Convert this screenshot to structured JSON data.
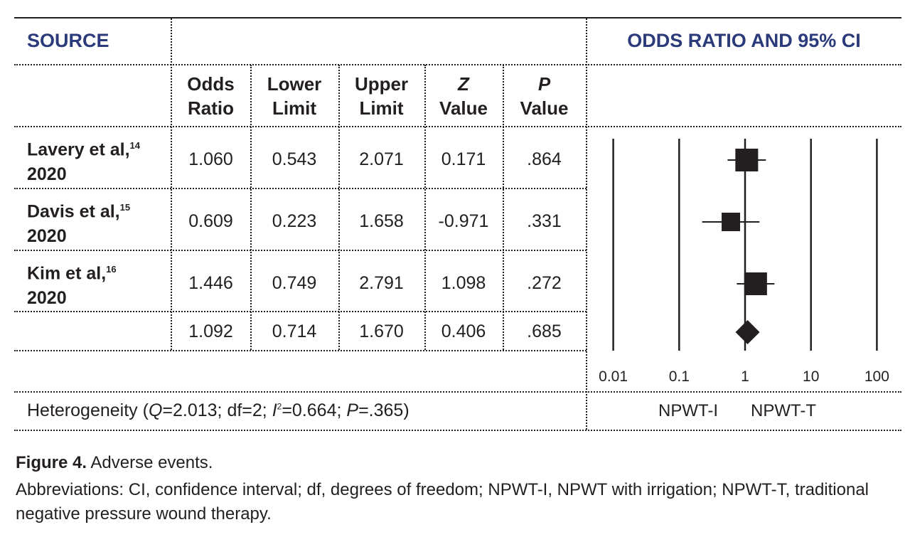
{
  "header": {
    "source": "SOURCE",
    "plot_title": "ODDS RATIO AND 95% CI"
  },
  "columns": [
    {
      "line1": "Odds",
      "line2": "Ratio"
    },
    {
      "line1": "Lower",
      "line2": "Limit"
    },
    {
      "line1": "Upper",
      "line2": "Limit"
    },
    {
      "line1": "Z",
      "line2": "Value"
    },
    {
      "line1": "P",
      "line2": "Value"
    }
  ],
  "chart_data": {
    "type": "forest",
    "x_scale": "log",
    "xlim": [
      0.01,
      100
    ],
    "x_ticks": [
      "0.01",
      "0.1",
      "1",
      "10",
      "100"
    ],
    "x_tick_values": [
      0.01,
      0.1,
      1,
      10,
      100
    ],
    "reference_line": 1,
    "favours_left": "NPWT-I",
    "favours_right": "NPWT-T",
    "rows": [
      {
        "name": "Lavery et al,",
        "ref": "14",
        "year": "2020",
        "or": "1.060",
        "lower": "0.543",
        "upper": "2.071",
        "z": "0.171",
        "p": ".864",
        "marker": "square"
      },
      {
        "name": "Davis et al,",
        "ref": "15",
        "year": "2020",
        "or": "0.609",
        "lower": "0.223",
        "upper": "1.658",
        "z": "-0.971",
        "p": ".331",
        "marker": "square"
      },
      {
        "name": "Kim et al,",
        "ref": "16",
        "year": "2020",
        "or": "1.446",
        "lower": "0.749",
        "upper": "2.791",
        "z": "1.098",
        "p": ".272",
        "marker": "square"
      },
      {
        "name": "",
        "ref": "",
        "year": "",
        "or": "1.092",
        "lower": "0.714",
        "upper": "1.670",
        "z": "0.406",
        "p": ".685",
        "marker": "diamond"
      }
    ]
  },
  "heterogeneity": {
    "prefix": "Heterogeneity (",
    "q": "Q",
    "q_val": "=2.013; df=2; ",
    "i": "I",
    "i_sup": "2",
    "i_val": "=0.664; ",
    "p": "P",
    "p_val": "=.365)"
  },
  "caption": {
    "label": "Figure 4.",
    "title": " Adverse events.",
    "abbreviations": "Abbreviations: CI, confidence interval; df, degrees of freedom; NPWT-I, NPWT with irrigation; NPWT-T, traditional negative pressure wound therapy."
  },
  "colors": {
    "header": "#2b3a7a",
    "ink": "#231f20"
  }
}
